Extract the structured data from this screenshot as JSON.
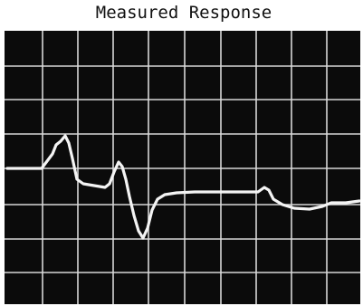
{
  "title": "Measured Response"
}
